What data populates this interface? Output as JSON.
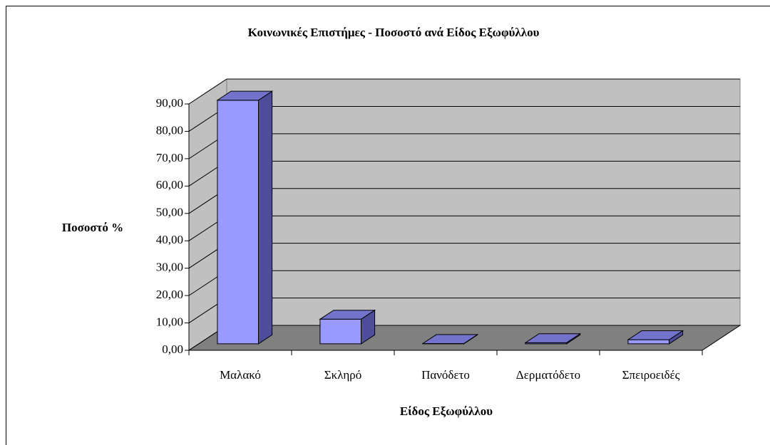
{
  "chart_data": {
    "type": "bar3d",
    "title": "Κοινωνικές Επιστήμες - Ποσοστό ανά Είδος Εξωφύλλου",
    "x_label": "Είδος Εξωφύλλου",
    "y_label": "Ποσοστό %",
    "categories": [
      "Μαλακό",
      "Σκληρό",
      "Πανόδετο",
      "Δερματόδετο",
      "Σπειροειδές"
    ],
    "values": [
      89.0,
      9.0,
      0.1,
      0.4,
      1.5
    ],
    "color": "#9999ff",
    "ylim": [
      0,
      90
    ],
    "yticks": [
      {
        "value": 0,
        "label": "0,00"
      },
      {
        "value": 10,
        "label": "10,00"
      },
      {
        "value": 20,
        "label": "20,00"
      },
      {
        "value": 30,
        "label": "30,00"
      },
      {
        "value": 40,
        "label": "40,00"
      },
      {
        "value": 50,
        "label": "50,00"
      },
      {
        "value": 60,
        "label": "60,00"
      },
      {
        "value": 70,
        "label": "70,00"
      },
      {
        "value": 80,
        "label": "80,00"
      },
      {
        "value": 90,
        "label": "90,00"
      }
    ],
    "grid": true
  }
}
